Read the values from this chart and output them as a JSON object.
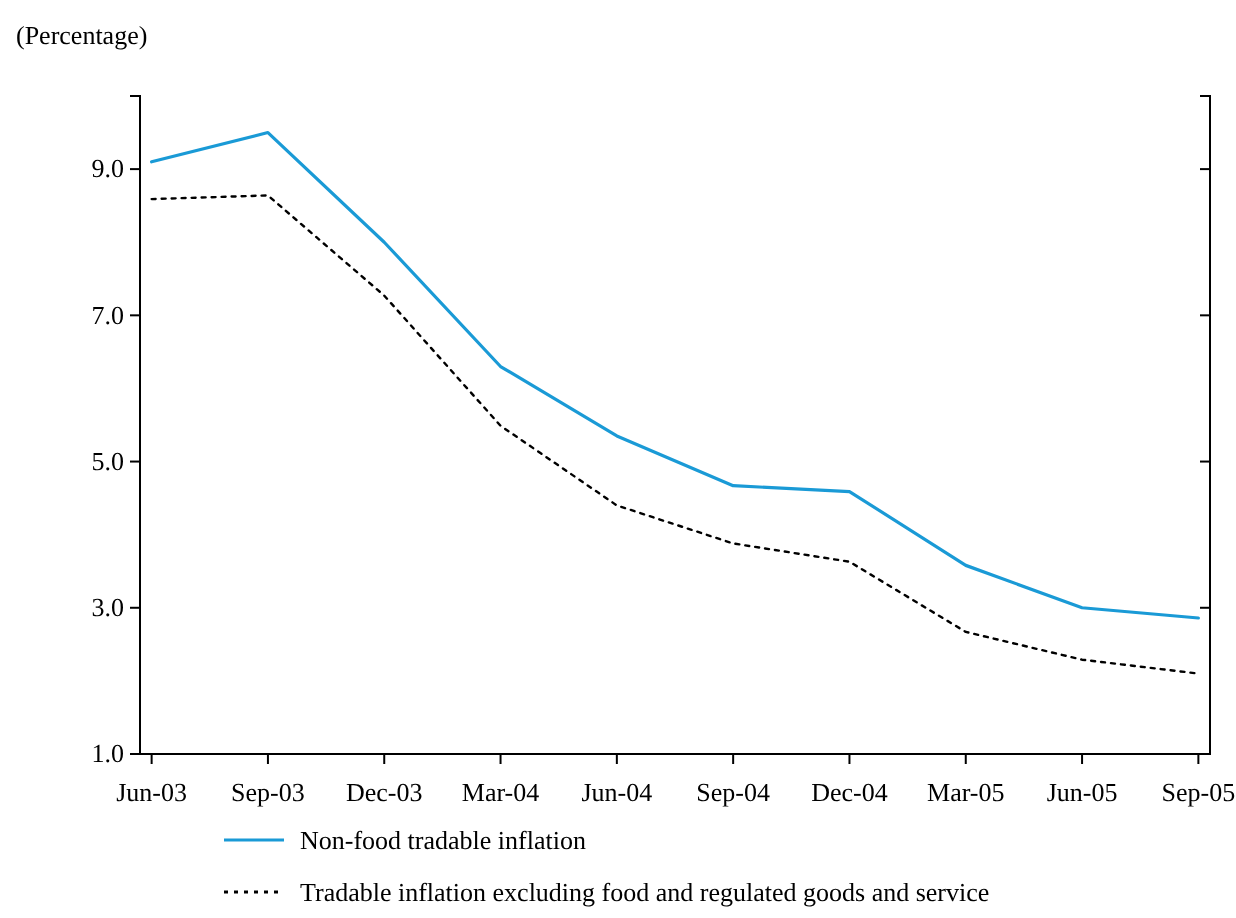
{
  "chart_data": {
    "type": "line",
    "ylabel": "(Percentage)",
    "categories": [
      "Jun-03",
      "Sep-03",
      "Dec-03",
      "Mar-04",
      "Jun-04",
      "Sep-04",
      "Dec-04",
      "Mar-05",
      "Jun-05",
      "Sep-05"
    ],
    "series": [
      {
        "name": "Non-food tradable inflation",
        "color": "#1a9ad6",
        "line_style": "solid",
        "values": [
          9.1,
          9.5,
          8.0,
          6.3,
          5.35,
          4.67,
          4.59,
          3.58,
          3.0,
          2.86
        ]
      },
      {
        "name": "Tradable inflation excluding food and regulated goods and service",
        "color": "#000000",
        "line_style": "dotted",
        "values": [
          8.59,
          8.64,
          7.27,
          5.49,
          4.4,
          3.88,
          3.63,
          2.67,
          2.29,
          2.1
        ]
      }
    ],
    "ylim": [
      1,
      10
    ],
    "yticks": [
      {
        "value": 1,
        "label": "1.0"
      },
      {
        "value": 3,
        "label": "3.0"
      },
      {
        "value": 5,
        "label": "5.0"
      },
      {
        "value": 7,
        "label": "7.0"
      },
      {
        "value": 9,
        "label": "9.0"
      }
    ],
    "grid": false,
    "legend": "bottom",
    "marker": "none"
  }
}
